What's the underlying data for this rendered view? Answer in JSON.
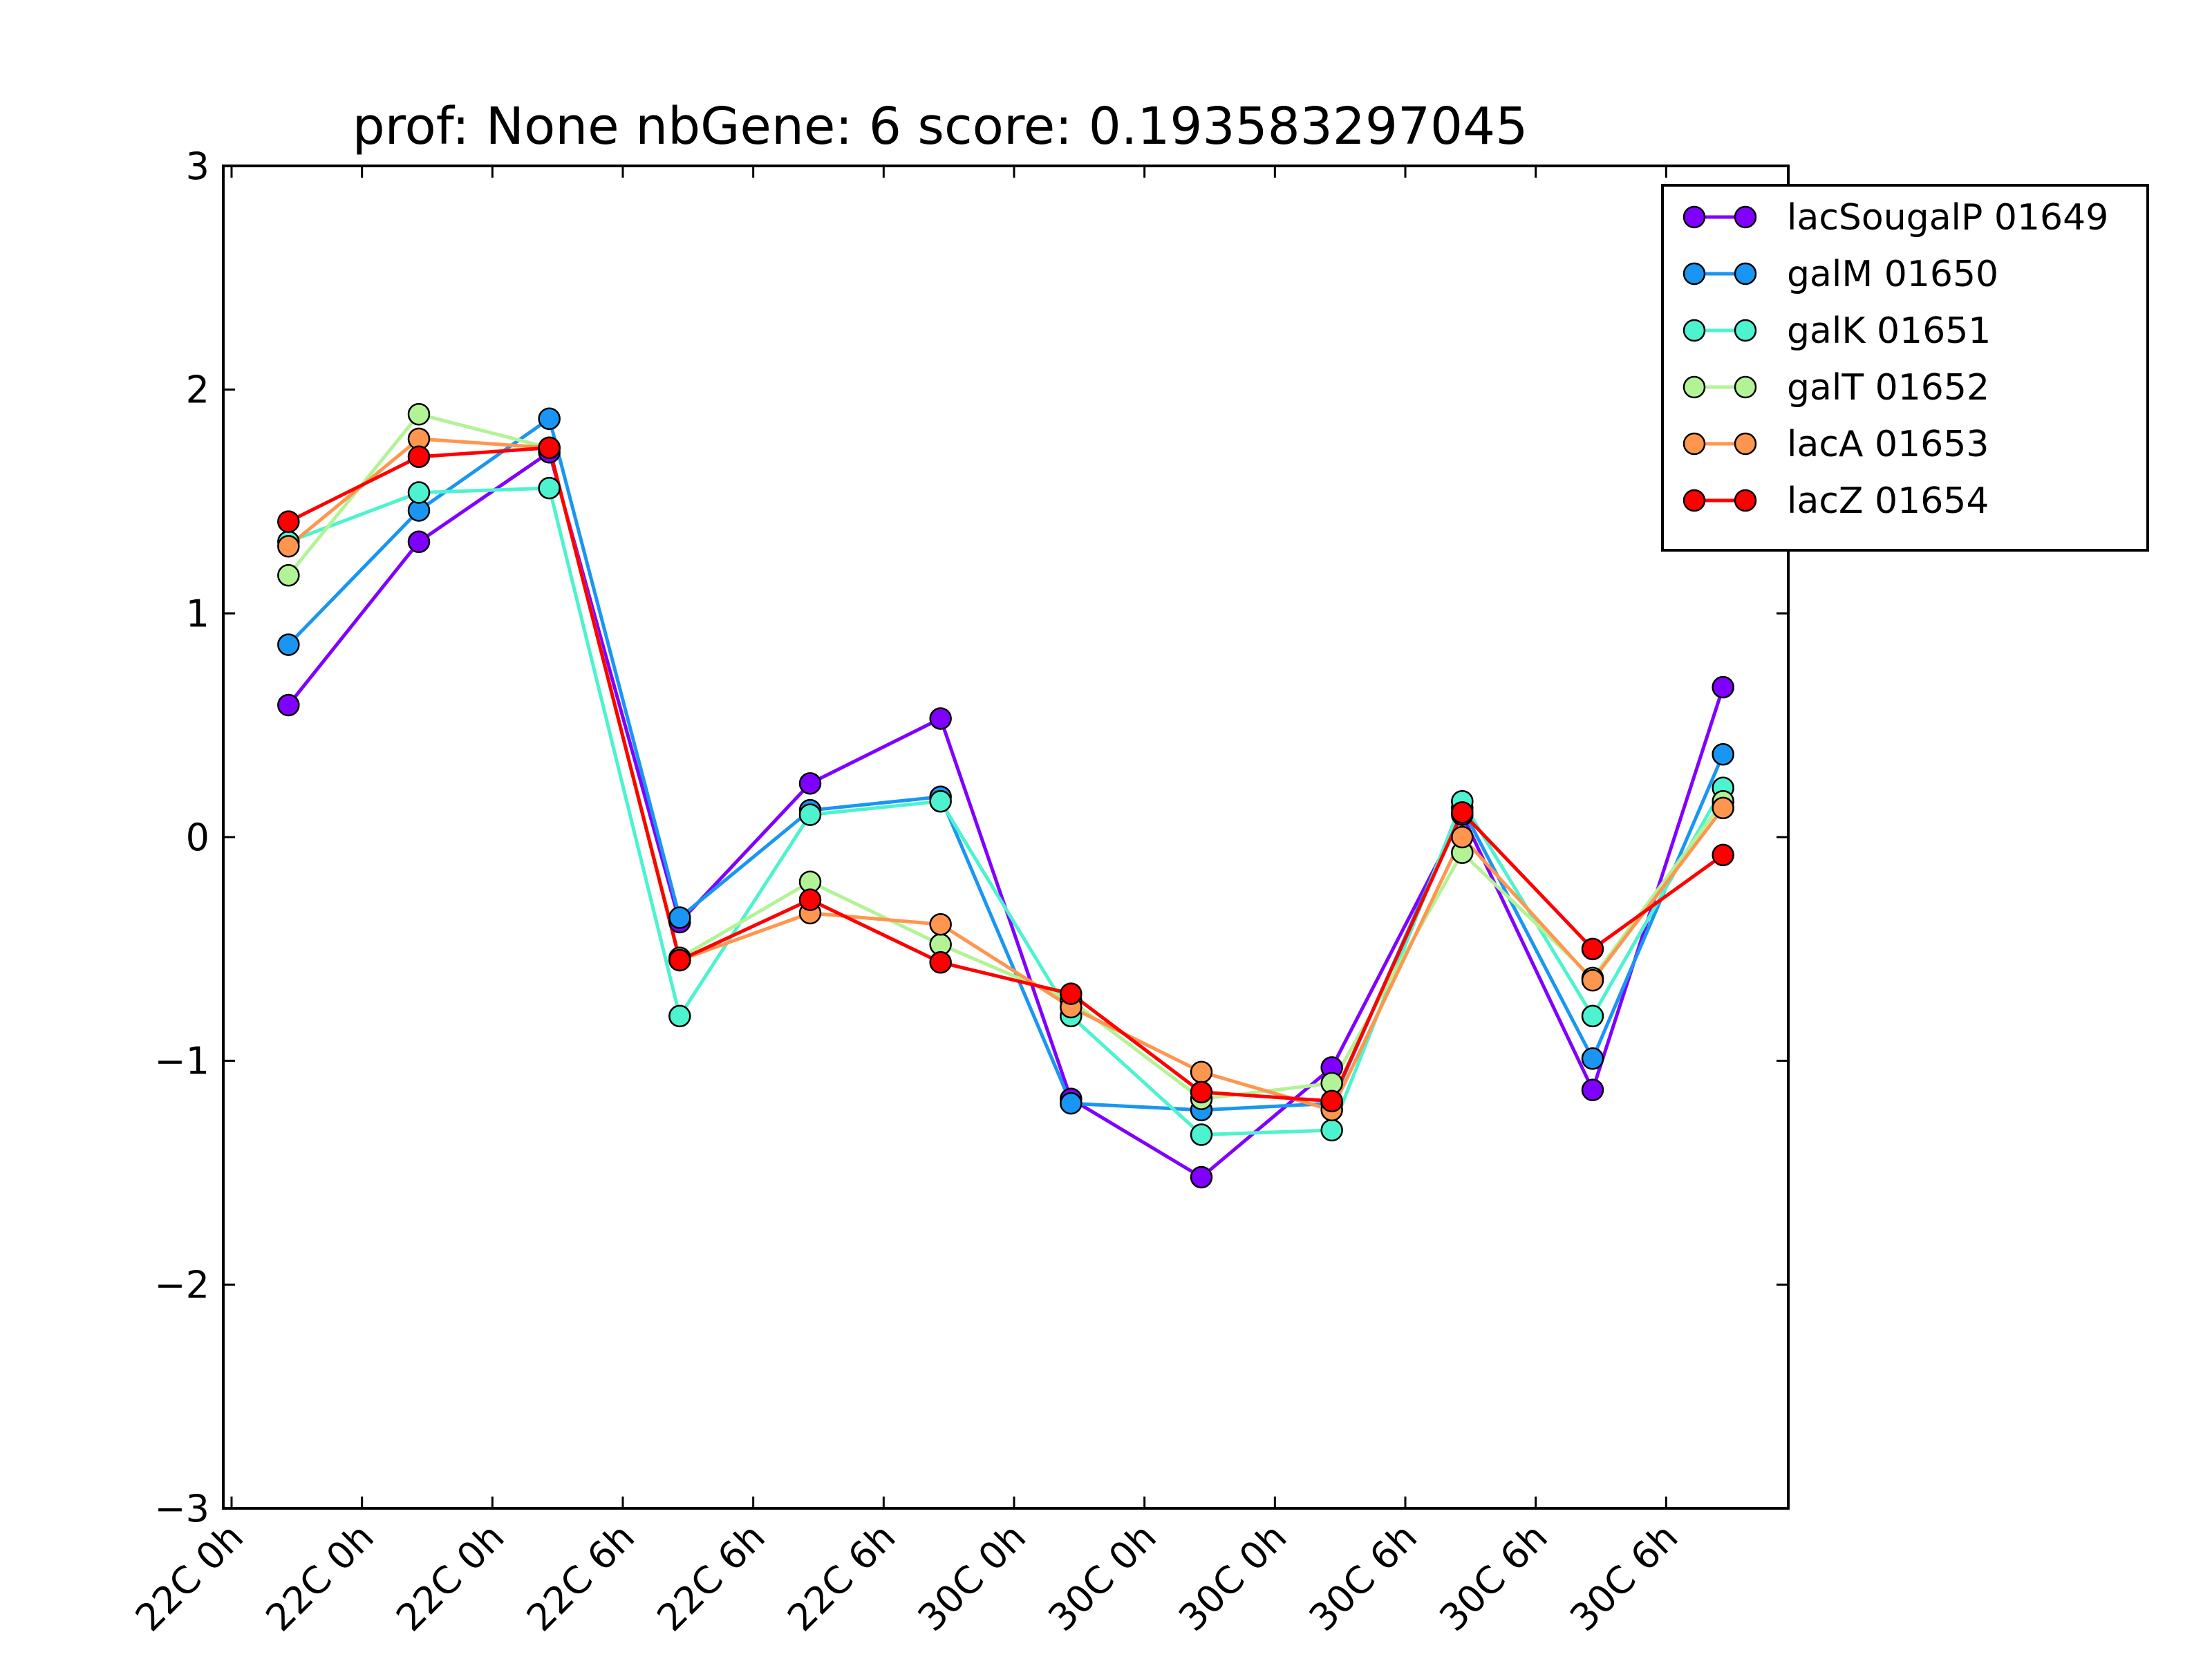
{
  "chart_data": {
    "type": "line",
    "title": "prof: None nbGene: 6 score: 0.193583297045",
    "xlabel": "",
    "ylabel": "",
    "categories": [
      "22C 0h",
      "22C 0h",
      "22C 0h",
      "22C 6h",
      "22C 6h",
      "22C 6h",
      "30C 0h",
      "30C 0h",
      "30C 0h",
      "30C 6h",
      "30C 6h",
      "30C 6h"
    ],
    "ylim": [
      -3,
      3
    ],
    "yticks": [
      -3,
      -2,
      -1,
      0,
      1,
      2,
      3
    ],
    "ytick_labels": [
      "−3",
      "−2",
      "−1",
      "0",
      "1",
      "2",
      "3"
    ],
    "grid": false,
    "legend_position": "top-right",
    "series": [
      {
        "name": "lacSougalP 01649",
        "color": "#8000ff",
        "values": [
          0.59,
          1.32,
          1.72,
          -0.38,
          0.24,
          0.53,
          -1.17,
          -1.52,
          -1.03,
          0.1,
          -1.13,
          0.67
        ]
      },
      {
        "name": "galM 01650",
        "color": "#1996f3",
        "values": [
          0.86,
          1.46,
          1.87,
          -0.36,
          0.12,
          0.18,
          -1.19,
          -1.22,
          -1.19,
          0.13,
          -0.99,
          0.37
        ]
      },
      {
        "name": "galK 01651",
        "color": "#4df3ce",
        "values": [
          1.32,
          1.54,
          1.56,
          -0.8,
          0.1,
          0.16,
          -0.8,
          -1.33,
          -1.31,
          0.16,
          -0.8,
          0.22
        ]
      },
      {
        "name": "galT 01652",
        "color": "#b2f396",
        "values": [
          1.17,
          1.89,
          1.74,
          -0.54,
          -0.2,
          -0.48,
          -0.73,
          -1.17,
          -1.1,
          -0.07,
          -0.63,
          0.16
        ]
      },
      {
        "name": "lacA 01653",
        "color": "#ff964f",
        "values": [
          1.3,
          1.78,
          1.74,
          -0.55,
          -0.34,
          -0.39,
          -0.76,
          -1.05,
          -1.22,
          0.0,
          -0.64,
          0.13
        ]
      },
      {
        "name": "lacZ 01654",
        "color": "#ff0000",
        "values": [
          1.41,
          1.7,
          1.74,
          -0.55,
          -0.28,
          -0.56,
          -0.7,
          -1.14,
          -1.18,
          0.11,
          -0.5,
          -0.08
        ]
      }
    ]
  }
}
